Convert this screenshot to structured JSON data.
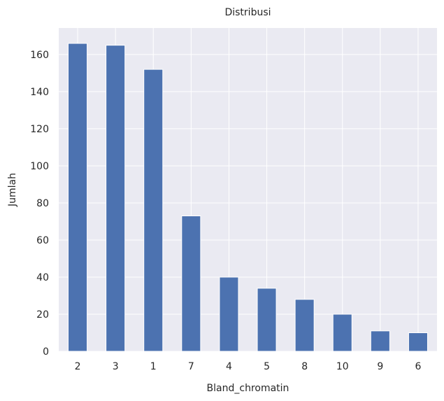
{
  "chart_data": {
    "type": "bar",
    "title": "Distribusi",
    "xlabel": "Bland_chromatin",
    "ylabel": "Jumlah",
    "categories": [
      "2",
      "3",
      "1",
      "7",
      "4",
      "5",
      "8",
      "10",
      "9",
      "6"
    ],
    "values": [
      166,
      165,
      152,
      73,
      40,
      34,
      28,
      20,
      11,
      10
    ],
    "yticks": [
      "0",
      "20",
      "40",
      "60",
      "80",
      "100",
      "120",
      "140",
      "160"
    ],
    "ylim": [
      0,
      174.3
    ],
    "grid": true,
    "legend": "none",
    "colors": {
      "bar": "#4c72b0",
      "plot_background": "#eaeaf2",
      "grid": "#ffffff"
    }
  }
}
